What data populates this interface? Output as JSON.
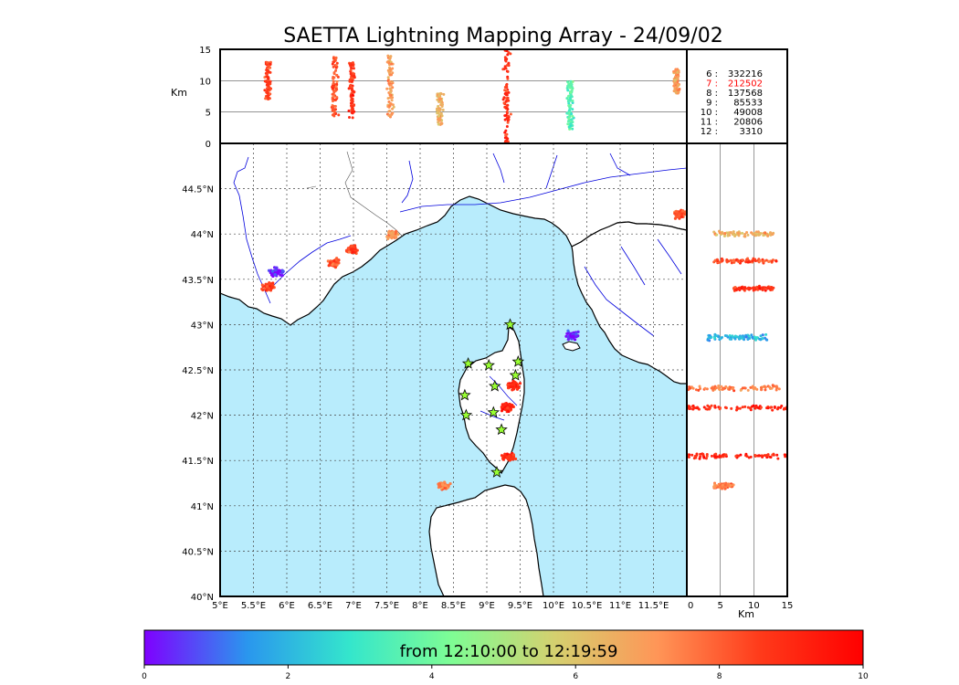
{
  "title": "SAETTA Lightning Mapping Array - 24/09/02",
  "colorbar": {
    "label": "from 12:10:00 to 12:19:59",
    "ticks": [
      "0",
      "2",
      "4",
      "6",
      "8",
      "10"
    ],
    "range": [
      0,
      10
    ],
    "colors": [
      "#7f00ff",
      "#2a96ee",
      "#34e6cc",
      "#7ffd94",
      "#d5d06f",
      "#ff9557",
      "#ff3a1a",
      "#ff0000"
    ]
  },
  "colors": {
    "sea": "#b8ecfc",
    "land": "#ffffff",
    "rivers": "#0000dd",
    "coast": "#000000",
    "grid": "#444444",
    "station": "#99ff33",
    "highlight_count": "#ff0000"
  },
  "altitude_panel": {
    "ylabel": "Km",
    "yticks": [
      "0",
      "5",
      "10",
      "15"
    ],
    "ylim": [
      0,
      15
    ]
  },
  "side_panel": {
    "xlabel": "Km",
    "xticks": [
      "0",
      "5",
      "10",
      "15"
    ],
    "xlim": [
      0,
      15
    ]
  },
  "map": {
    "lon_labels": [
      "5°E",
      "5.5°E",
      "6°E",
      "6.5°E",
      "7°E",
      "7.5°E",
      "8°E",
      "8.5°E",
      "9°E",
      "9.5°E",
      "10°E",
      "10.5°E",
      "11°E",
      "11.5°E"
    ],
    "lat_labels": [
      "40°N",
      "40.5°N",
      "41°N",
      "41.5°N",
      "42°N",
      "42.5°N",
      "43°N",
      "43.5°N",
      "44°N",
      "44.5°N"
    ],
    "lon_range": [
      5,
      12
    ],
    "lat_range": [
      40,
      45
    ],
    "stations": [
      [
        9.35,
        43.0
      ],
      [
        8.72,
        42.57
      ],
      [
        9.03,
        42.55
      ],
      [
        9.47,
        42.59
      ],
      [
        9.43,
        42.44
      ],
      [
        9.12,
        42.32
      ],
      [
        8.67,
        42.22
      ],
      [
        8.69,
        42.0
      ],
      [
        9.1,
        42.03
      ],
      [
        9.22,
        41.84
      ],
      [
        9.15,
        41.37
      ]
    ]
  },
  "counts": [
    {
      "label": "6  :",
      "value": "332216",
      "highlight": false
    },
    {
      "label": "7  :",
      "value": "212502",
      "highlight": true
    },
    {
      "label": "8  :",
      "value": "137568",
      "highlight": false
    },
    {
      "label": "9  :",
      "value": "85533",
      "highlight": false
    },
    {
      "label": "10  :",
      "value": "49008",
      "highlight": false
    },
    {
      "label": "11  :",
      "value": "20806",
      "highlight": false
    },
    {
      "label": "12  :",
      "value": "3310",
      "highlight": false
    }
  ],
  "chart_data": {
    "type": "scatter",
    "title": "SAETTA Lightning Mapping Array - 24/09/02",
    "xlabel": "",
    "ylabel": "",
    "xlim": [
      5,
      12
    ],
    "ylim": [
      40,
      45
    ],
    "color_range": [
      0,
      10
    ],
    "clusters": [
      {
        "lon": 5.72,
        "lat": 43.42,
        "t": 8.6
      },
      {
        "lon": 5.85,
        "lat": 43.58,
        "t": 0.3
      },
      {
        "lon": 6.72,
        "lat": 43.68,
        "t": 8.2
      },
      {
        "lon": 7.0,
        "lat": 43.83,
        "t": 8.4
      },
      {
        "lon": 7.58,
        "lat": 44.0,
        "t": 7.0
      },
      {
        "lon": 8.35,
        "lat": 41.22,
        "t": 7.5
      },
      {
        "lon": 9.4,
        "lat": 42.33,
        "t": 9.0
      },
      {
        "lon": 9.3,
        "lat": 42.08,
        "t": 9.2
      },
      {
        "lon": 9.33,
        "lat": 41.54,
        "t": 8.8
      },
      {
        "lon": 10.28,
        "lat": 42.88,
        "t": 0.3
      },
      {
        "lon": 11.9,
        "lat": 44.22,
        "t": 8.0
      }
    ],
    "alt_columns": [
      {
        "lon": 5.72,
        "alt": [
          7,
          13
        ],
        "t": 8.5
      },
      {
        "lon": 6.72,
        "alt": [
          4,
          14
        ],
        "t": 8.3
      },
      {
        "lon": 6.98,
        "alt": [
          4,
          13
        ],
        "t": 8.6
      },
      {
        "lon": 7.55,
        "alt": [
          4,
          14
        ],
        "t": 7.0
      },
      {
        "lon": 8.3,
        "alt": [
          3,
          8
        ],
        "t": 6.5
      },
      {
        "lon": 9.3,
        "alt": [
          0,
          15
        ],
        "t": 8.8
      },
      {
        "lon": 10.25,
        "alt": [
          2,
          10
        ],
        "t": 3.5
      },
      {
        "lon": 11.85,
        "alt": [
          8,
          12
        ],
        "t": 7.0
      }
    ],
    "side_columns": [
      {
        "lat": 44.0,
        "km": [
          4,
          13
        ],
        "t": 6.5
      },
      {
        "lat": 43.7,
        "km": [
          4,
          14
        ],
        "t": 8.3
      },
      {
        "lat": 43.4,
        "km": [
          7,
          13
        ],
        "t": 8.8
      },
      {
        "lat": 42.86,
        "km": [
          3,
          12
        ],
        "t": 2.0
      },
      {
        "lat": 42.3,
        "km": [
          0,
          14
        ],
        "t": 7.5
      },
      {
        "lat": 42.08,
        "km": [
          0,
          15
        ],
        "t": 9.0
      },
      {
        "lat": 41.55,
        "km": [
          0,
          15
        ],
        "t": 9.2
      },
      {
        "lat": 41.22,
        "km": [
          4,
          7
        ],
        "t": 7.5
      }
    ]
  }
}
